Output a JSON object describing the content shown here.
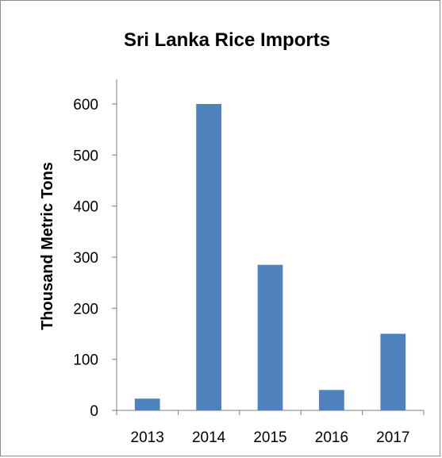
{
  "chart_data": {
    "type": "bar",
    "title": "Sri Lanka Rice Imports",
    "xlabel": "",
    "ylabel": "Thousand Metric Tons",
    "categories": [
      "2013",
      "2014",
      "2015",
      "2016",
      "2017"
    ],
    "values": [
      23,
      600,
      285,
      40,
      150
    ],
    "ylim": [
      0,
      600
    ],
    "yticks": [
      "0",
      "100",
      "200",
      "300",
      "400",
      "500",
      "600"
    ],
    "grid": false,
    "legend": "none",
    "bar_color": "#4f81bd",
    "axis_color": "#7f7f7f"
  }
}
